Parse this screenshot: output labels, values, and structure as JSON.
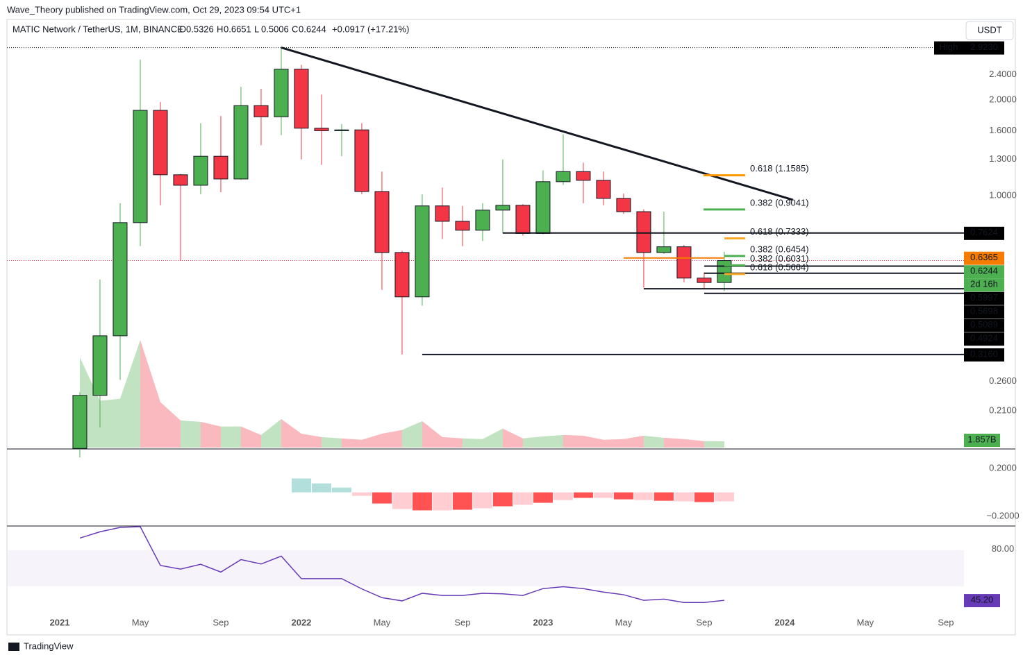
{
  "credit": "Wave_Theory published on TradingView.com, Oct 29, 2023 09:54 UTC+1",
  "footer": "TradingView",
  "currency_button": "USDT",
  "chart_data": {
    "type": "candlestick",
    "symbol": "MATIC Network / TetherUS, 1M, BINANCE",
    "ohlc_letters": [
      "O",
      "H",
      "L",
      "C"
    ],
    "change": "+0.0917 (+17.21%)",
    "log_scale": true,
    "up_color": "#4caf50",
    "down_color": "#f23645",
    "open": [
      0.16,
      0.235,
      0.362,
      0.822,
      1.855,
      1.163,
      1.078,
      1.33,
      1.128,
      1.92,
      1.77,
      2.5,
      1.63,
      1.6,
      1.61,
      1.03,
      0.662,
      0.48,
      0.928,
      0.83,
      0.778,
      0.9,
      0.932,
      0.76,
      1.106,
      1.19,
      1.117,
      0.98,
      0.89,
      0.662,
      0.69,
      0.55,
      0.5326
    ],
    "high": [
      0.24,
      0.544,
      0.946,
      2.68,
      1.97,
      1.17,
      1.69,
      1.78,
      2.2,
      2.17,
      2.923,
      2.58,
      2.08,
      1.68,
      1.69,
      1.19,
      0.67,
      1.01,
      1.06,
      0.928,
      0.946,
      1.3,
      0.94,
      1.2,
      1.56,
      1.27,
      1.19,
      1.015,
      0.905,
      0.89,
      0.7,
      0.573,
      0.6651
    ],
    "low": [
      0.15,
      0.186,
      0.263,
      0.693,
      0.932,
      0.624,
      1.01,
      1.025,
      1.12,
      1.44,
      1.55,
      1.3,
      1.25,
      1.33,
      1.01,
      0.505,
      0.316,
      0.45,
      0.73,
      0.693,
      0.72,
      0.76,
      0.748,
      0.755,
      1.08,
      0.946,
      0.932,
      0.877,
      0.513,
      0.655,
      0.534,
      0.5089,
      0.5006
    ],
    "close": [
      0.235,
      0.362,
      0.822,
      1.855,
      1.163,
      1.078,
      1.33,
      1.128,
      1.92,
      1.77,
      2.5,
      1.63,
      1.6,
      1.61,
      1.03,
      0.662,
      0.48,
      0.928,
      0.83,
      0.778,
      0.9,
      0.932,
      0.76,
      1.106,
      1.19,
      1.117,
      0.98,
      0.89,
      0.662,
      0.69,
      0.55,
      0.5326,
      0.6244
    ],
    "xlim": [
      -3.62,
      43.9
    ],
    "xticks": [
      {
        "value": -1,
        "label": "2021"
      },
      {
        "value": 3,
        "label": "May"
      },
      {
        "value": 7,
        "label": "Sep"
      },
      {
        "value": 11,
        "label": "2022"
      },
      {
        "value": 15,
        "label": "May"
      },
      {
        "value": 19,
        "label": "Sep"
      },
      {
        "value": 23,
        "label": "2023"
      },
      {
        "value": 27,
        "label": "May"
      },
      {
        "value": 31,
        "label": "Sep"
      },
      {
        "value": 35,
        "label": "2024"
      },
      {
        "value": 39,
        "label": "May"
      },
      {
        "value": 43,
        "label": "Sep"
      }
    ],
    "ylim": [
      0.161,
      3.13
    ],
    "yticks": [
      {
        "value": 2.4,
        "label": "2.4000"
      },
      {
        "value": 2,
        "label": "2.0000"
      },
      {
        "value": 1.6,
        "label": "1.6000"
      },
      {
        "value": 1.3,
        "label": "1.3000"
      },
      {
        "value": 1,
        "label": "1.0000"
      },
      {
        "value": 0.26,
        "label": "0.2600"
      },
      {
        "value": 0.21,
        "label": "0.2100"
      }
    ],
    "ath": {
      "text": "High",
      "value": 2.923,
      "label": "2.9230"
    },
    "trendline": {
      "x": [
        10,
        35.4
      ],
      "y": [
        2.923,
        0.97
      ]
    },
    "levels": [
      {
        "value": 0.7624,
        "start": 21
      },
      {
        "value": 0.5997,
        "start": 31
      },
      {
        "value": 0.5698,
        "start": 31
      },
      {
        "value": 0.5089,
        "start": 28
      },
      {
        "value": 0.4924,
        "start": 31
      },
      {
        "value": {
          "value": 0.316,
          "label": "0.3160"
        },
        "start": 17
      }
    ],
    "moving_average": {
      "value": 0.6365,
      "start": 27,
      "color": "#f57c00"
    },
    "countdown": "2d 16h",
    "fibs": [
      {
        "label": "0.618 (1.1585)",
        "value": 1.1585,
        "color": "#ff9800"
      },
      {
        "label": "0.382 (0.9041)",
        "value": 0.9041,
        "color": "#4caf50"
      },
      {
        "label": "0.618 (0.7333)",
        "value": 0.7333,
        "color": "#f9a825"
      },
      {
        "label": "0.382 (0.6454)",
        "value": 0.6454,
        "color": "#4caf50"
      },
      {
        "label": "0.382 (0.6031)",
        "value": 0.6031,
        "color": "#4caf50"
      },
      {
        "label": "0.618 (0.5664)",
        "value": 0.5664,
        "color": "#f9a825"
      }
    ],
    "volume": {
      "values": [
        26.6,
        13.8,
        14.4,
        31.7,
        13.4,
        8.0,
        7.6,
        6.2,
        6.2,
        3.7,
        8.4,
        4.1,
        3.1,
        2.7,
        2.3,
        4.1,
        5.2,
        7.8,
        3.1,
        2.7,
        2.5,
        5.6,
        2.7,
        3.3,
        3.7,
        3.5,
        2.3,
        2.5,
        3.5,
        2.9,
        2.5,
        1.9,
        1.857
      ],
      "last_label": "1.857B"
    },
    "macd": {
      "start": 11,
      "histogram": [
        0.116,
        0.075,
        0.04,
        -0.029,
        -0.093,
        -0.139,
        -0.15,
        -0.15,
        -0.145,
        -0.133,
        -0.116,
        -0.104,
        -0.087,
        -0.064,
        -0.046,
        -0.046,
        -0.058,
        -0.064,
        -0.07,
        -0.075,
        -0.081,
        -0.075
      ],
      "ylim": [
        -0.275,
        0.357
      ],
      "yticks": [
        {
          "value": 0.2,
          "label": "0.2000"
        },
        {
          "value": -0.2,
          "label": "−0.2000"
        }
      ]
    },
    "rsi": {
      "values": [
        87.7,
        92,
        95,
        97,
        69,
        66.5,
        69.8,
        64.5,
        73,
        70,
        75.4,
        60,
        60,
        60,
        53,
        47,
        44.8,
        50,
        48.5,
        48.5,
        50,
        49.6,
        48.5,
        53.2,
        54.5,
        53.2,
        50.8,
        49,
        45.2,
        46,
        43.7,
        43.7,
        45.2
      ],
      "ylim": [
        22,
        95.5
      ],
      "yticks": [
        {
          "value": 80,
          "label": "80.00"
        }
      ],
      "last_label": "45.20",
      "color": "#673ab7"
    }
  }
}
